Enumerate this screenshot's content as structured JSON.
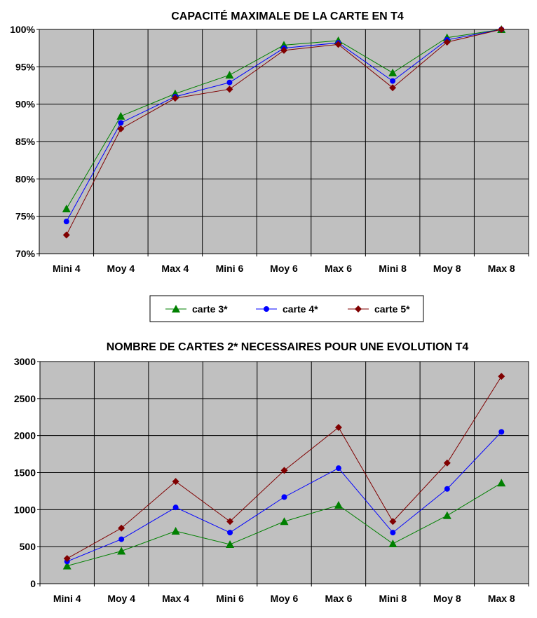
{
  "legend": {
    "items": [
      {
        "label": "carte 3*",
        "color": "#008000",
        "marker": "triangle"
      },
      {
        "label": "carte 4*",
        "color": "#0000FF",
        "marker": "circle"
      },
      {
        "label": "carte 5*",
        "color": "#800000",
        "marker": "diamond"
      }
    ]
  },
  "chart_data": [
    {
      "type": "line",
      "title": "CAPACITÉ MAXIMALE DE LA CARTE EN T4",
      "categories": [
        "Mini 4",
        "Moy 4",
        "Max 4",
        "Mini 6",
        "Moy 6",
        "Max 6",
        "Mini 8",
        "Moy 8",
        "Max 8"
      ],
      "ylim": [
        70,
        100
      ],
      "yticks": [
        70,
        75,
        80,
        85,
        90,
        95,
        100
      ],
      "ytick_labels": [
        "70%",
        "75%",
        "80%",
        "85%",
        "90%",
        "95%",
        "100%"
      ],
      "grid": true,
      "plot_background": "#C0C0C0",
      "series": [
        {
          "name": "carte 3*",
          "color": "#008000",
          "marker": "triangle",
          "values": [
            76.0,
            88.4,
            91.4,
            93.9,
            97.9,
            98.5,
            94.2,
            98.9,
            100
          ]
        },
        {
          "name": "carte 4*",
          "color": "#0000FF",
          "marker": "circle",
          "values": [
            74.3,
            87.5,
            91.0,
            92.9,
            97.5,
            98.2,
            93.1,
            98.6,
            100
          ]
        },
        {
          "name": "carte 5*",
          "color": "#800000",
          "marker": "diamond",
          "values": [
            72.5,
            86.7,
            90.8,
            92.0,
            97.2,
            98.0,
            92.2,
            98.3,
            100
          ]
        }
      ]
    },
    {
      "type": "line",
      "title": "NOMBRE DE CARTES 2* NECESSAIRES POUR UNE EVOLUTION T4",
      "categories": [
        "Mini 4",
        "Moy 4",
        "Max 4",
        "Mini 6",
        "Moy 6",
        "Max 6",
        "Mini 8",
        "Moy 8",
        "Max 8"
      ],
      "ylim": [
        0,
        3000
      ],
      "yticks": [
        0,
        500,
        1000,
        1500,
        2000,
        2500,
        3000
      ],
      "ytick_labels": [
        "0",
        "500",
        "1000",
        "1500",
        "2000",
        "2500",
        "3000"
      ],
      "grid": true,
      "plot_background": "#C0C0C0",
      "series": [
        {
          "name": "carte 3*",
          "color": "#008000",
          "marker": "triangle",
          "values": [
            240,
            440,
            710,
            530,
            840,
            1060,
            540,
            920,
            1360
          ]
        },
        {
          "name": "carte 4*",
          "color": "#0000FF",
          "marker": "circle",
          "values": [
            300,
            600,
            1030,
            690,
            1170,
            1560,
            690,
            1280,
            2050
          ]
        },
        {
          "name": "carte 5*",
          "color": "#800000",
          "marker": "diamond",
          "values": [
            340,
            750,
            1380,
            840,
            1530,
            2110,
            840,
            1630,
            2800
          ]
        }
      ]
    }
  ]
}
